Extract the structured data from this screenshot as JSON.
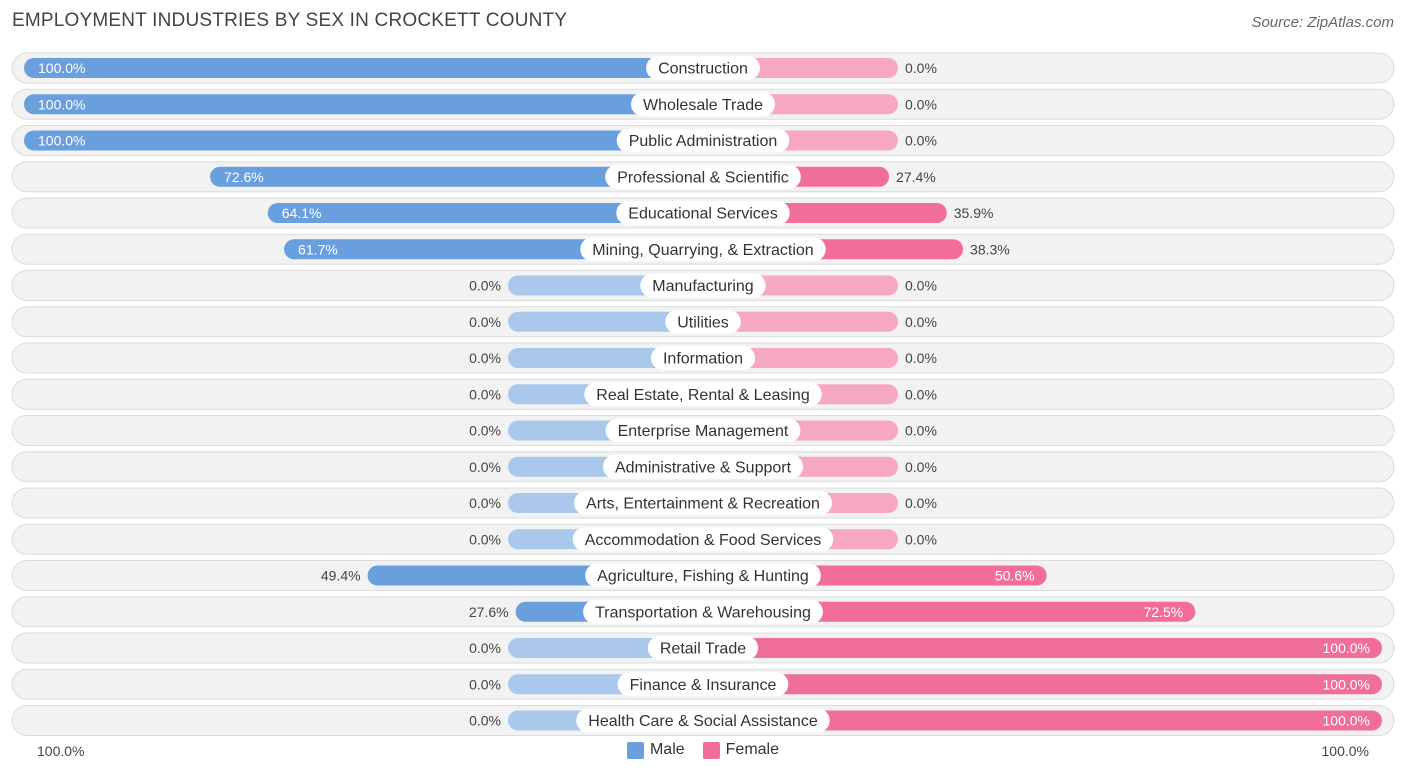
{
  "header": {
    "title": "EMPLOYMENT INDUSTRIES BY SEX IN CROCKETT COUNTY",
    "source": "Source: ZipAtlas.com"
  },
  "colors": {
    "male_strong": "#6a9fdd",
    "male_light": "#a9c8ec",
    "female_strong": "#f06e98",
    "female_light": "#f6a8c2",
    "row_bg": "#f2f2f2",
    "row_border": "#dcdcdc"
  },
  "legend": {
    "male": "Male",
    "female": "Female"
  },
  "axis": {
    "left_label": "100.0%",
    "right_label": "100.0%"
  },
  "chart_data": {
    "type": "bar",
    "orientation": "horizontal-diverging",
    "title": "EMPLOYMENT INDUSTRIES BY SEX IN CROCKETT COUNTY",
    "xlim": [
      -100,
      100
    ],
    "categories": [
      "Construction",
      "Wholesale Trade",
      "Public Administration",
      "Professional & Scientific",
      "Educational Services",
      "Mining, Quarrying, & Extraction",
      "Manufacturing",
      "Utilities",
      "Information",
      "Real Estate, Rental & Leasing",
      "Enterprise Management",
      "Administrative & Support",
      "Arts, Entertainment & Recreation",
      "Accommodation & Food Services",
      "Agriculture, Fishing & Hunting",
      "Transportation & Warehousing",
      "Retail Trade",
      "Finance & Insurance",
      "Health Care & Social Assistance"
    ],
    "series": [
      {
        "name": "Male",
        "values": [
          100.0,
          100.0,
          100.0,
          72.6,
          64.1,
          61.7,
          0.0,
          0.0,
          0.0,
          0.0,
          0.0,
          0.0,
          0.0,
          0.0,
          49.4,
          27.6,
          0.0,
          0.0,
          0.0
        ],
        "labels": [
          "100.0%",
          "100.0%",
          "100.0%",
          "72.6%",
          "64.1%",
          "61.7%",
          "0.0%",
          "0.0%",
          "0.0%",
          "0.0%",
          "0.0%",
          "0.0%",
          "0.0%",
          "0.0%",
          "49.4%",
          "27.6%",
          "0.0%",
          "0.0%",
          "0.0%"
        ]
      },
      {
        "name": "Female",
        "values": [
          0.0,
          0.0,
          0.0,
          27.4,
          35.9,
          38.3,
          0.0,
          0.0,
          0.0,
          0.0,
          0.0,
          0.0,
          0.0,
          0.0,
          50.6,
          72.5,
          100.0,
          100.0,
          100.0
        ],
        "labels": [
          "0.0%",
          "0.0%",
          "0.0%",
          "27.4%",
          "35.9%",
          "38.3%",
          "0.0%",
          "0.0%",
          "0.0%",
          "0.0%",
          "0.0%",
          "0.0%",
          "0.0%",
          "0.0%",
          "50.6%",
          "72.5%",
          "100.0%",
          "100.0%",
          "100.0%"
        ]
      }
    ],
    "legend_position": "bottom-center"
  }
}
